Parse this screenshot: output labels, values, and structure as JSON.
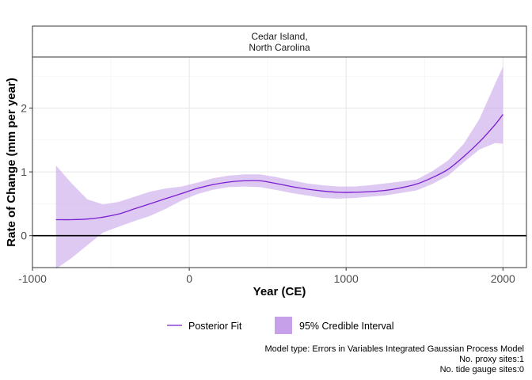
{
  "chart_data": {
    "type": "line",
    "facet_label": [
      "Cedar Island,",
      "North Carolina"
    ],
    "xlabel": "Year (CE)",
    "ylabel": "Rate of Change (mm per year)",
    "xlim": [
      -1000,
      2150
    ],
    "ylim": [
      -0.5,
      2.8
    ],
    "x_ticks": [
      -1000,
      0,
      1000,
      2000
    ],
    "y_ticks": [
      0,
      1,
      2
    ],
    "grid": true,
    "reference_line_y": 0,
    "legend_position": "bottom",
    "series": [
      {
        "name": "Posterior Fit",
        "kind": "line",
        "color": "#7a1fd0",
        "x": [
          -850,
          -750,
          -650,
          -550,
          -450,
          -350,
          -250,
          -150,
          -50,
          50,
          150,
          250,
          350,
          450,
          550,
          650,
          750,
          850,
          950,
          1050,
          1150,
          1250,
          1350,
          1450,
          1550,
          1650,
          1750,
          1850,
          1950,
          2000
        ],
        "y": [
          0.25,
          0.25,
          0.26,
          0.29,
          0.34,
          0.42,
          0.5,
          0.58,
          0.66,
          0.74,
          0.8,
          0.84,
          0.86,
          0.86,
          0.82,
          0.77,
          0.73,
          0.7,
          0.68,
          0.68,
          0.69,
          0.71,
          0.75,
          0.81,
          0.91,
          1.04,
          1.24,
          1.47,
          1.74,
          1.9
        ]
      },
      {
        "name": "95% Credible Interval",
        "kind": "band",
        "color": "#c39ce9",
        "x": [
          -850,
          -750,
          -650,
          -550,
          -450,
          -350,
          -250,
          -150,
          -50,
          50,
          150,
          250,
          350,
          450,
          550,
          650,
          750,
          850,
          950,
          1050,
          1150,
          1250,
          1350,
          1450,
          1550,
          1650,
          1750,
          1850,
          1950,
          2000
        ],
        "lower": [
          -0.52,
          -0.35,
          -0.15,
          0.05,
          0.14,
          0.23,
          0.31,
          0.42,
          0.55,
          0.65,
          0.72,
          0.76,
          0.77,
          0.76,
          0.72,
          0.67,
          0.63,
          0.59,
          0.58,
          0.59,
          0.61,
          0.63,
          0.67,
          0.71,
          0.81,
          0.94,
          1.15,
          1.35,
          1.45,
          1.44
        ],
        "upper": [
          1.1,
          0.82,
          0.57,
          0.49,
          0.53,
          0.61,
          0.69,
          0.74,
          0.77,
          0.83,
          0.9,
          0.94,
          0.96,
          0.96,
          0.92,
          0.87,
          0.82,
          0.79,
          0.77,
          0.77,
          0.79,
          0.82,
          0.85,
          0.88,
          1.01,
          1.18,
          1.44,
          1.83,
          2.38,
          2.65
        ]
      }
    ],
    "caption": [
      "Model type: Errors in Variables Integrated Gaussian Process Model",
      "No. proxy sites:1",
      "No. tide gauge sites:0"
    ]
  }
}
